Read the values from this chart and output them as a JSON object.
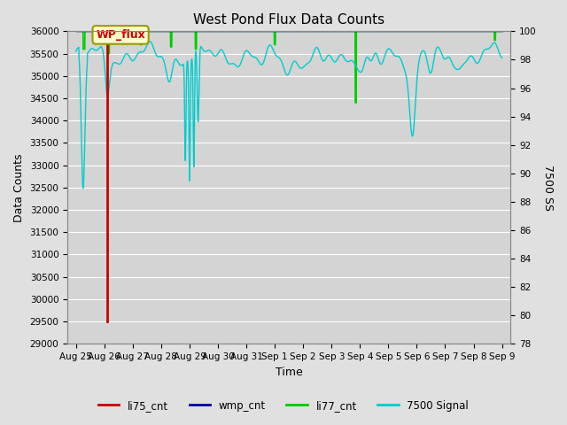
{
  "title": "West Pond Flux Data Counts",
  "xlabel": "Time",
  "ylabel_left": "Data Counts",
  "ylabel_right": "7500 SS",
  "ylim_left": [
    29000,
    36000
  ],
  "ylim_right": [
    78,
    100
  ],
  "background_color": "#e0e0e0",
  "plot_bg_color": "#d4d4d4",
  "grid_color": "#ffffff",
  "x_tick_labels": [
    "Aug 25",
    "Aug 26",
    "Aug 27",
    "Aug 28",
    "Aug 29",
    "Aug 30",
    "Aug 31",
    "Sep 1",
    "Sep 2",
    "Sep 3",
    "Sep 4",
    "Sep 5",
    "Sep 6",
    "Sep 7",
    "Sep 8",
    "Sep 9"
  ],
  "legend_labels": [
    "li75_cnt",
    "wmp_cnt",
    "li77_cnt",
    "7500 Signal"
  ],
  "legend_colors": [
    "#cc0000",
    "#000099",
    "#00cc00",
    "#00cccc"
  ],
  "annotation_text": "WP_flux",
  "annotation_color": "#cc0000",
  "annotation_bg": "#ffffcc",
  "annotation_border": "#999900",
  "n_days": 16
}
